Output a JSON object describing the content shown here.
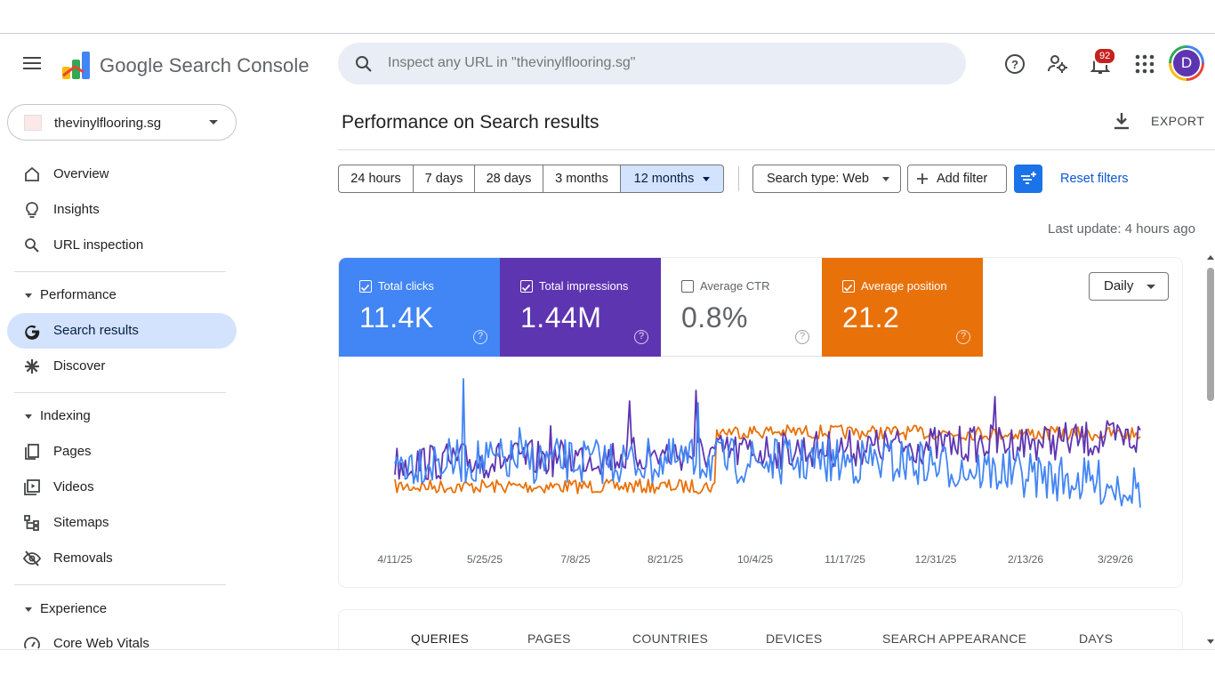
{
  "header": {
    "product_name": "Google Search Console",
    "search_placeholder": "Inspect any URL in \"thevinylflooring.sg\"",
    "notification_count": "92",
    "avatar_initial": "D"
  },
  "sidebar": {
    "property_name": "thevinylflooring.sg",
    "items": [
      {
        "label": "Overview",
        "icon": "home-icon"
      },
      {
        "label": "Insights",
        "icon": "lightbulb-icon"
      },
      {
        "label": "URL inspection",
        "icon": "search-icon"
      }
    ],
    "performance": {
      "title": "Performance",
      "items": [
        {
          "label": "Search results",
          "icon": "google-g-icon",
          "active": true
        },
        {
          "label": "Discover",
          "icon": "asterisk-icon"
        }
      ]
    },
    "indexing": {
      "title": "Indexing",
      "items": [
        {
          "label": "Pages",
          "icon": "pages-icon"
        },
        {
          "label": "Videos",
          "icon": "video-icon"
        },
        {
          "label": "Sitemaps",
          "icon": "sitemap-icon"
        },
        {
          "label": "Removals",
          "icon": "eye-off-icon"
        }
      ]
    },
    "experience": {
      "title": "Experience",
      "items": [
        {
          "label": "Core Web Vitals",
          "icon": "gauge-icon"
        }
      ]
    }
  },
  "main": {
    "title": "Performance on Search results",
    "export_label": "EXPORT",
    "date_ranges": [
      "24 hours",
      "7 days",
      "28 days",
      "3 months",
      "12 months"
    ],
    "selected_range": "12 months",
    "search_type": "Search type: Web",
    "add_filter": "Add filter",
    "reset_filters": "Reset filters",
    "last_update": "Last update: 4 hours ago",
    "granularity": "Daily",
    "metrics": [
      {
        "label": "Total clicks",
        "value": "11.4K",
        "checked": true,
        "color": "#4285f4"
      },
      {
        "label": "Total impressions",
        "value": "1.44M",
        "checked": true,
        "color": "#5e35b1"
      },
      {
        "label": "Average CTR",
        "value": "0.8%",
        "checked": false,
        "color": "#ffffff"
      },
      {
        "label": "Average position",
        "value": "21.2",
        "checked": true,
        "color": "#e8710a"
      }
    ],
    "tabs": [
      "QUERIES",
      "PAGES",
      "COUNTRIES",
      "DEVICES",
      "SEARCH APPEARANCE",
      "DAYS"
    ],
    "active_tab": "QUERIES"
  },
  "chart_data": {
    "type": "line",
    "title": "Performance on Search results",
    "x_tick_labels": [
      "4/11/25",
      "5/25/25",
      "7/8/25",
      "8/21/25",
      "10/4/25",
      "11/17/25",
      "12/31/25",
      "2/13/26",
      "3/29/26"
    ],
    "y_axis": "hidden (each series on its own relative scale)",
    "series": [
      {
        "name": "Total clicks",
        "color": "#4285f4",
        "trend": "daily values fluctuating, peak near 5/25/25 and 8/21/25, drifting lower after 12/31/25"
      },
      {
        "name": "Total impressions",
        "color": "#5e35b1",
        "trend": "gradually rising across the year with spikes near 7/8/25, 8/21/25 and 12/31/25"
      },
      {
        "name": "Average position",
        "color": "#e8710a",
        "trend": "lower level until ~9/25, then a step up and stays high to 3/29/26"
      }
    ]
  }
}
